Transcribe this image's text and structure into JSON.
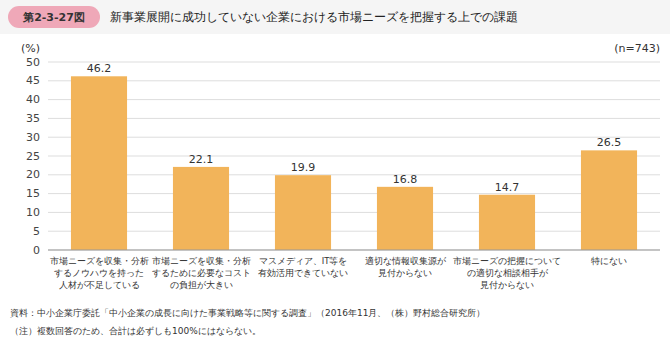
{
  "chart_data": {
    "type": "bar",
    "title": "新事業展開に成功していない企業における市場ニーズを把握する上での課題",
    "annotations": [
      "第2-3-27図",
      "(n=743)",
      "資料：中小企業庁委託「中小企業の成長に向けた事業戦略等に関する調査」（2016年11月、（株）野村総合研究所）",
      "（注）複数回答のため、合計は必ずしも100%にはならない。"
    ],
    "ylabel": "(%)",
    "categories": [
      "市場ニーズを収集・分析\nするノウハウを持った\n人材が不足している",
      "市場ニーズを収集・分析\nするために必要なコスト\nの負担が大きい",
      "マスメディア、IT等を\n有効活用できていない",
      "適切な情報収集源が\n見付からない",
      "市場ニーズの把握について\nの適切な相談相手が\n見付からない",
      "特にない"
    ],
    "values": [
      46.2,
      22.1,
      19.9,
      16.8,
      14.7,
      26.5
    ],
    "color": "#F2B45A",
    "ylim": [
      0,
      50
    ],
    "yticks": [
      0,
      5,
      10,
      15,
      20,
      25,
      30,
      35,
      40,
      45,
      50
    ],
    "grid": true,
    "data_labels": true
  }
}
